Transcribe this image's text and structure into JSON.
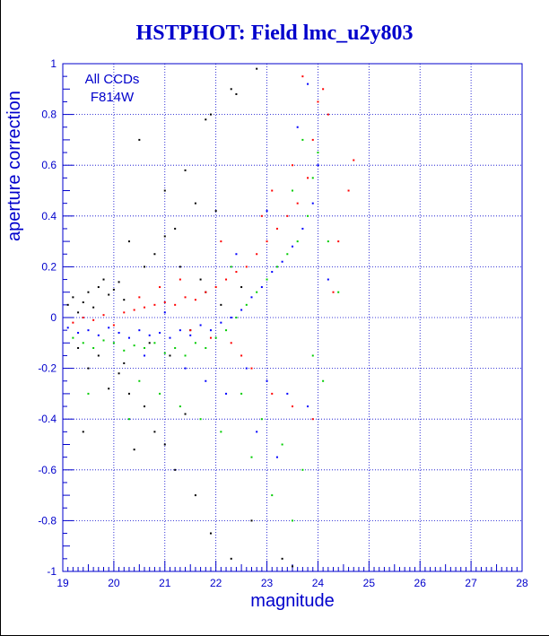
{
  "chart_data": {
    "type": "scatter",
    "title": "HSTPHOT: Field lmc_u2y803",
    "xlabel": "magnitude",
    "ylabel": "aperture correction",
    "xlim": [
      19,
      28
    ],
    "ylim": [
      -1,
      1
    ],
    "x_ticks": [
      19,
      20,
      21,
      22,
      23,
      24,
      25,
      26,
      27,
      28
    ],
    "y_ticks": [
      -1,
      -0.8,
      -0.6,
      -0.4,
      -0.2,
      0,
      0.2,
      0.4,
      0.6,
      0.8,
      1
    ],
    "grid": true,
    "annotations": [
      "All CCDs",
      "F814W"
    ],
    "series": [
      {
        "color": "#000000",
        "points": [
          [
            19.1,
            0.05
          ],
          [
            19.2,
            0.08
          ],
          [
            19.3,
            0.02
          ],
          [
            19.4,
            0.06
          ],
          [
            19.5,
            0.1
          ],
          [
            19.6,
            0.04
          ],
          [
            19.7,
            0.12
          ],
          [
            19.8,
            0.15
          ],
          [
            19.9,
            0.09
          ],
          [
            20.0,
            0.11
          ],
          [
            20.1,
            0.14
          ],
          [
            20.2,
            0.07
          ],
          [
            19.3,
            -0.12
          ],
          [
            19.5,
            -0.2
          ],
          [
            19.7,
            -0.15
          ],
          [
            19.9,
            -0.28
          ],
          [
            20.1,
            -0.22
          ],
          [
            20.3,
            -0.3
          ],
          [
            19.4,
            -0.45
          ],
          [
            20.3,
            0.3
          ],
          [
            20.6,
            0.2
          ],
          [
            20.8,
            0.25
          ],
          [
            21.0,
            0.32
          ],
          [
            21.2,
            0.35
          ],
          [
            21.0,
            0.5
          ],
          [
            21.4,
            0.58
          ],
          [
            20.5,
            0.7
          ],
          [
            21.8,
            0.78
          ],
          [
            21.9,
            0.8
          ],
          [
            22.3,
            0.9
          ],
          [
            22.4,
            0.88
          ],
          [
            22.8,
            0.98
          ],
          [
            21.6,
            0.45
          ],
          [
            22.0,
            0.42
          ],
          [
            21.3,
            0.2
          ],
          [
            21.7,
            0.15
          ],
          [
            20.8,
            -0.45
          ],
          [
            21.0,
            -0.5
          ],
          [
            21.2,
            -0.6
          ],
          [
            20.4,
            -0.52
          ],
          [
            21.6,
            -0.7
          ],
          [
            21.9,
            -0.85
          ],
          [
            22.3,
            -0.95
          ],
          [
            23.3,
            -0.95
          ],
          [
            23.5,
            -0.98
          ],
          [
            22.7,
            -0.8
          ],
          [
            20.6,
            -0.35
          ],
          [
            21.4,
            -0.38
          ],
          [
            20.2,
            -0.18
          ],
          [
            20.7,
            -0.1
          ],
          [
            21.1,
            -0.15
          ],
          [
            21.5,
            -0.05
          ],
          [
            22.1,
            0.05
          ],
          [
            22.5,
            0.12
          ],
          [
            21.8,
            0.1
          ]
        ]
      },
      {
        "color": "#ff0000",
        "points": [
          [
            19.2,
            -0.02
          ],
          [
            19.4,
            0.0
          ],
          [
            19.6,
            -0.01
          ],
          [
            19.8,
            0.01
          ],
          [
            20.0,
            -0.03
          ],
          [
            20.2,
            0.02
          ],
          [
            20.4,
            0.03
          ],
          [
            20.6,
            0.04
          ],
          [
            20.8,
            0.05
          ],
          [
            21.0,
            0.06
          ],
          [
            21.2,
            0.05
          ],
          [
            21.4,
            0.08
          ],
          [
            21.6,
            0.07
          ],
          [
            21.8,
            0.1
          ],
          [
            22.0,
            0.12
          ],
          [
            22.2,
            0.15
          ],
          [
            22.4,
            0.18
          ],
          [
            22.6,
            0.2
          ],
          [
            22.8,
            0.25
          ],
          [
            23.0,
            0.3
          ],
          [
            23.2,
            0.35
          ],
          [
            23.4,
            0.4
          ],
          [
            23.6,
            0.45
          ],
          [
            23.8,
            0.55
          ],
          [
            23.9,
            0.7
          ],
          [
            24.0,
            0.85
          ],
          [
            24.1,
            0.9
          ],
          [
            23.7,
            0.95
          ],
          [
            24.2,
            0.8
          ],
          [
            23.5,
            0.6
          ],
          [
            23.1,
            0.5
          ],
          [
            22.9,
            0.4
          ],
          [
            21.5,
            -0.05
          ],
          [
            21.9,
            -0.08
          ],
          [
            22.3,
            -0.1
          ],
          [
            22.7,
            -0.2
          ],
          [
            23.1,
            -0.3
          ],
          [
            23.5,
            -0.35
          ],
          [
            23.9,
            -0.4
          ],
          [
            22.5,
            -0.15
          ],
          [
            24.4,
            0.3
          ],
          [
            24.6,
            0.5
          ],
          [
            24.7,
            0.62
          ],
          [
            24.3,
            0.1
          ],
          [
            22.1,
            0.3
          ],
          [
            20.9,
            0.12
          ],
          [
            20.5,
            0.08
          ],
          [
            21.3,
            0.15
          ]
        ]
      },
      {
        "color": "#00cc00",
        "points": [
          [
            19.2,
            -0.08
          ],
          [
            19.4,
            -0.1
          ],
          [
            19.6,
            -0.12
          ],
          [
            19.8,
            -0.09
          ],
          [
            20.0,
            -0.1
          ],
          [
            20.2,
            -0.13
          ],
          [
            20.4,
            -0.11
          ],
          [
            20.6,
            -0.12
          ],
          [
            20.8,
            -0.1
          ],
          [
            21.0,
            -0.14
          ],
          [
            21.2,
            -0.12
          ],
          [
            21.4,
            -0.15
          ],
          [
            21.6,
            -0.1
          ],
          [
            21.8,
            -0.12
          ],
          [
            22.0,
            -0.08
          ],
          [
            22.2,
            -0.05
          ],
          [
            22.4,
            0.0
          ],
          [
            22.6,
            0.05
          ],
          [
            22.8,
            0.1
          ],
          [
            23.0,
            0.15
          ],
          [
            23.2,
            0.2
          ],
          [
            23.4,
            0.25
          ],
          [
            23.6,
            0.3
          ],
          [
            23.8,
            0.4
          ],
          [
            23.9,
            0.55
          ],
          [
            24.0,
            0.65
          ],
          [
            23.7,
            0.7
          ],
          [
            23.5,
            0.5
          ],
          [
            22.5,
            -0.3
          ],
          [
            22.9,
            -0.4
          ],
          [
            23.3,
            -0.5
          ],
          [
            23.7,
            -0.6
          ],
          [
            22.7,
            -0.55
          ],
          [
            23.1,
            -0.7
          ],
          [
            23.5,
            -0.8
          ],
          [
            20.5,
            -0.25
          ],
          [
            20.9,
            -0.3
          ],
          [
            21.3,
            -0.35
          ],
          [
            21.7,
            -0.4
          ],
          [
            22.1,
            -0.45
          ],
          [
            19.5,
            -0.3
          ],
          [
            20.3,
            -0.4
          ],
          [
            24.2,
            0.3
          ],
          [
            24.4,
            0.1
          ],
          [
            22.3,
            0.2
          ],
          [
            23.9,
            -0.15
          ],
          [
            24.1,
            -0.25
          ]
        ]
      },
      {
        "color": "#0000ff",
        "points": [
          [
            19.1,
            -0.04
          ],
          [
            19.3,
            -0.06
          ],
          [
            19.5,
            -0.05
          ],
          [
            19.7,
            -0.07
          ],
          [
            19.9,
            -0.04
          ],
          [
            20.1,
            -0.06
          ],
          [
            20.3,
            -0.08
          ],
          [
            20.5,
            -0.05
          ],
          [
            20.7,
            -0.07
          ],
          [
            20.9,
            -0.06
          ],
          [
            21.1,
            -0.08
          ],
          [
            21.3,
            -0.05
          ],
          [
            21.5,
            -0.07
          ],
          [
            21.7,
            -0.03
          ],
          [
            21.9,
            -0.05
          ],
          [
            22.1,
            -0.02
          ],
          [
            22.3,
            0.0
          ],
          [
            22.5,
            0.03
          ],
          [
            22.7,
            0.08
          ],
          [
            22.9,
            0.12
          ],
          [
            23.1,
            0.18
          ],
          [
            23.3,
            0.22
          ],
          [
            23.5,
            0.28
          ],
          [
            23.7,
            0.35
          ],
          [
            23.9,
            0.45
          ],
          [
            24.0,
            0.6
          ],
          [
            23.6,
            0.75
          ],
          [
            23.8,
            0.92
          ],
          [
            22.6,
            -0.2
          ],
          [
            23.0,
            -0.25
          ],
          [
            23.4,
            -0.3
          ],
          [
            23.8,
            -0.35
          ],
          [
            22.8,
            -0.45
          ],
          [
            23.2,
            -0.55
          ],
          [
            21.4,
            -0.2
          ],
          [
            21.8,
            -0.25
          ],
          [
            22.2,
            -0.3
          ],
          [
            20.6,
            -0.15
          ],
          [
            24.2,
            0.15
          ],
          [
            22.4,
            0.25
          ],
          [
            23.0,
            0.42
          ],
          [
            21.0,
            0.02
          ]
        ]
      }
    ]
  }
}
